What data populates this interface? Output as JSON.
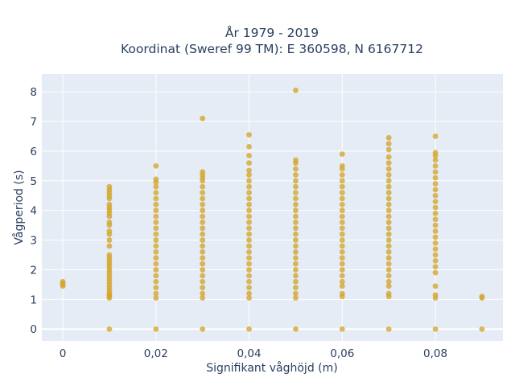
{
  "chart_data": {
    "type": "scatter",
    "title_lines": [
      "År 1979 - 2019",
      "Koordinat (Sweref 99 TM): E 360598, N 6167712"
    ],
    "xlabel": "Signifikant våghöjd (m)",
    "ylabel": "Vågperiod (s)",
    "xlim": [
      -0.0045,
      0.0945
    ],
    "ylim": [
      -0.4,
      8.6
    ],
    "xticks": [
      0,
      0.02,
      0.04,
      0.06,
      0.08
    ],
    "xtick_labels": [
      "0",
      "0,02",
      "0,04",
      "0,06",
      "0,08"
    ],
    "yticks": [
      0,
      1,
      2,
      3,
      4,
      5,
      6,
      7,
      8
    ],
    "ytick_labels": [
      "0",
      "1",
      "2",
      "3",
      "4",
      "5",
      "6",
      "7",
      "8"
    ],
    "grid": true,
    "colors": {
      "plot_background": "#e5ecf6",
      "grid": "#ffffff",
      "marker": "#d4a52a",
      "text": "#2a3f5f"
    },
    "series": [
      {
        "points": [
          [
            0,
            1.45
          ],
          [
            0,
            1.5
          ],
          [
            0,
            1.55
          ],
          [
            0,
            1.6
          ],
          [
            0.01,
            0
          ],
          [
            0.01,
            1.05
          ],
          [
            0.01,
            1.1
          ],
          [
            0.01,
            1.15
          ],
          [
            0.01,
            1.2
          ],
          [
            0.01,
            1.3
          ],
          [
            0.01,
            1.4
          ],
          [
            0.01,
            1.5
          ],
          [
            0.01,
            1.6
          ],
          [
            0.01,
            1.7
          ],
          [
            0.01,
            1.8
          ],
          [
            0.01,
            1.9
          ],
          [
            0.01,
            2.0
          ],
          [
            0.01,
            2.1
          ],
          [
            0.01,
            2.2
          ],
          [
            0.01,
            2.3
          ],
          [
            0.01,
            2.4
          ],
          [
            0.01,
            2.5
          ],
          [
            0.01,
            2.8
          ],
          [
            0.01,
            3.0
          ],
          [
            0.01,
            3.2
          ],
          [
            0.01,
            3.3
          ],
          [
            0.01,
            3.5
          ],
          [
            0.01,
            3.6
          ],
          [
            0.01,
            3.8
          ],
          [
            0.01,
            3.9
          ],
          [
            0.01,
            4.0
          ],
          [
            0.01,
            4.1
          ],
          [
            0.01,
            4.2
          ],
          [
            0.01,
            4.4
          ],
          [
            0.01,
            4.5
          ],
          [
            0.01,
            4.6
          ],
          [
            0.01,
            4.7
          ],
          [
            0.01,
            4.8
          ],
          [
            0.02,
            0
          ],
          [
            0.02,
            1.05
          ],
          [
            0.02,
            1.2
          ],
          [
            0.02,
            1.4
          ],
          [
            0.02,
            1.6
          ],
          [
            0.02,
            1.8
          ],
          [
            0.02,
            2.0
          ],
          [
            0.02,
            2.2
          ],
          [
            0.02,
            2.4
          ],
          [
            0.02,
            2.6
          ],
          [
            0.02,
            2.8
          ],
          [
            0.02,
            3.0
          ],
          [
            0.02,
            3.2
          ],
          [
            0.02,
            3.4
          ],
          [
            0.02,
            3.6
          ],
          [
            0.02,
            3.8
          ],
          [
            0.02,
            4.0
          ],
          [
            0.02,
            4.2
          ],
          [
            0.02,
            4.4
          ],
          [
            0.02,
            4.6
          ],
          [
            0.02,
            4.8
          ],
          [
            0.02,
            4.95
          ],
          [
            0.02,
            5.05
          ],
          [
            0.02,
            5.5
          ],
          [
            0.03,
            0
          ],
          [
            0.03,
            1.05
          ],
          [
            0.03,
            1.2
          ],
          [
            0.03,
            1.4
          ],
          [
            0.03,
            1.6
          ],
          [
            0.03,
            1.8
          ],
          [
            0.03,
            2.0
          ],
          [
            0.03,
            2.2
          ],
          [
            0.03,
            2.4
          ],
          [
            0.03,
            2.6
          ],
          [
            0.03,
            2.8
          ],
          [
            0.03,
            3.0
          ],
          [
            0.03,
            3.2
          ],
          [
            0.03,
            3.4
          ],
          [
            0.03,
            3.6
          ],
          [
            0.03,
            3.8
          ],
          [
            0.03,
            4.0
          ],
          [
            0.03,
            4.2
          ],
          [
            0.03,
            4.4
          ],
          [
            0.03,
            4.6
          ],
          [
            0.03,
            4.8
          ],
          [
            0.03,
            5.0
          ],
          [
            0.03,
            5.1
          ],
          [
            0.03,
            5.2
          ],
          [
            0.03,
            5.3
          ],
          [
            0.03,
            7.1
          ],
          [
            0.04,
            0
          ],
          [
            0.04,
            1.05
          ],
          [
            0.04,
            1.2
          ],
          [
            0.04,
            1.4
          ],
          [
            0.04,
            1.6
          ],
          [
            0.04,
            1.8
          ],
          [
            0.04,
            2.0
          ],
          [
            0.04,
            2.2
          ],
          [
            0.04,
            2.4
          ],
          [
            0.04,
            2.6
          ],
          [
            0.04,
            2.8
          ],
          [
            0.04,
            3.0
          ],
          [
            0.04,
            3.2
          ],
          [
            0.04,
            3.4
          ],
          [
            0.04,
            3.6
          ],
          [
            0.04,
            3.8
          ],
          [
            0.04,
            4.0
          ],
          [
            0.04,
            4.2
          ],
          [
            0.04,
            4.4
          ],
          [
            0.04,
            4.6
          ],
          [
            0.04,
            4.8
          ],
          [
            0.04,
            5.0
          ],
          [
            0.04,
            5.2
          ],
          [
            0.04,
            5.35
          ],
          [
            0.04,
            5.6
          ],
          [
            0.04,
            5.85
          ],
          [
            0.04,
            6.15
          ],
          [
            0.04,
            6.55
          ],
          [
            0.05,
            0
          ],
          [
            0.05,
            1.05
          ],
          [
            0.05,
            1.2
          ],
          [
            0.05,
            1.4
          ],
          [
            0.05,
            1.6
          ],
          [
            0.05,
            1.8
          ],
          [
            0.05,
            2.0
          ],
          [
            0.05,
            2.2
          ],
          [
            0.05,
            2.4
          ],
          [
            0.05,
            2.6
          ],
          [
            0.05,
            2.8
          ],
          [
            0.05,
            3.0
          ],
          [
            0.05,
            3.2
          ],
          [
            0.05,
            3.4
          ],
          [
            0.05,
            3.6
          ],
          [
            0.05,
            3.8
          ],
          [
            0.05,
            4.0
          ],
          [
            0.05,
            4.2
          ],
          [
            0.05,
            4.4
          ],
          [
            0.05,
            4.6
          ],
          [
            0.05,
            4.8
          ],
          [
            0.05,
            5.0
          ],
          [
            0.05,
            5.2
          ],
          [
            0.05,
            5.4
          ],
          [
            0.05,
            5.6
          ],
          [
            0.05,
            5.7
          ],
          [
            0.05,
            8.05
          ],
          [
            0.06,
            0
          ],
          [
            0.06,
            1.1
          ],
          [
            0.06,
            1.2
          ],
          [
            0.06,
            1.45
          ],
          [
            0.06,
            1.6
          ],
          [
            0.06,
            1.8
          ],
          [
            0.06,
            2.0
          ],
          [
            0.06,
            2.2
          ],
          [
            0.06,
            2.4
          ],
          [
            0.06,
            2.6
          ],
          [
            0.06,
            2.8
          ],
          [
            0.06,
            3.0
          ],
          [
            0.06,
            3.2
          ],
          [
            0.06,
            3.4
          ],
          [
            0.06,
            3.6
          ],
          [
            0.06,
            3.8
          ],
          [
            0.06,
            4.0
          ],
          [
            0.06,
            4.2
          ],
          [
            0.06,
            4.4
          ],
          [
            0.06,
            4.6
          ],
          [
            0.06,
            4.8
          ],
          [
            0.06,
            5.0
          ],
          [
            0.06,
            5.2
          ],
          [
            0.06,
            5.4
          ],
          [
            0.06,
            5.5
          ],
          [
            0.06,
            5.9
          ],
          [
            0.07,
            0
          ],
          [
            0.07,
            1.1
          ],
          [
            0.07,
            1.2
          ],
          [
            0.07,
            1.45
          ],
          [
            0.07,
            1.6
          ],
          [
            0.07,
            1.8
          ],
          [
            0.07,
            2.0
          ],
          [
            0.07,
            2.2
          ],
          [
            0.07,
            2.4
          ],
          [
            0.07,
            2.6
          ],
          [
            0.07,
            2.8
          ],
          [
            0.07,
            3.0
          ],
          [
            0.07,
            3.2
          ],
          [
            0.07,
            3.4
          ],
          [
            0.07,
            3.6
          ],
          [
            0.07,
            3.8
          ],
          [
            0.07,
            4.0
          ],
          [
            0.07,
            4.2
          ],
          [
            0.07,
            4.4
          ],
          [
            0.07,
            4.6
          ],
          [
            0.07,
            4.8
          ],
          [
            0.07,
            5.0
          ],
          [
            0.07,
            5.2
          ],
          [
            0.07,
            5.4
          ],
          [
            0.07,
            5.6
          ],
          [
            0.07,
            5.8
          ],
          [
            0.07,
            6.05
          ],
          [
            0.07,
            6.25
          ],
          [
            0.07,
            6.45
          ],
          [
            0.08,
            0
          ],
          [
            0.08,
            1.05
          ],
          [
            0.08,
            1.15
          ],
          [
            0.08,
            1.45
          ],
          [
            0.08,
            1.9
          ],
          [
            0.08,
            2.1
          ],
          [
            0.08,
            2.3
          ],
          [
            0.08,
            2.5
          ],
          [
            0.08,
            2.7
          ],
          [
            0.08,
            2.9
          ],
          [
            0.08,
            3.1
          ],
          [
            0.08,
            3.3
          ],
          [
            0.08,
            3.5
          ],
          [
            0.08,
            3.7
          ],
          [
            0.08,
            3.9
          ],
          [
            0.08,
            4.1
          ],
          [
            0.08,
            4.3
          ],
          [
            0.08,
            4.5
          ],
          [
            0.08,
            4.7
          ],
          [
            0.08,
            4.9
          ],
          [
            0.08,
            5.1
          ],
          [
            0.08,
            5.3
          ],
          [
            0.08,
            5.5
          ],
          [
            0.08,
            5.7
          ],
          [
            0.08,
            5.85
          ],
          [
            0.08,
            5.95
          ],
          [
            0.08,
            6.5
          ],
          [
            0.09,
            0
          ],
          [
            0.09,
            1.05
          ],
          [
            0.09,
            1.1
          ]
        ]
      }
    ]
  }
}
